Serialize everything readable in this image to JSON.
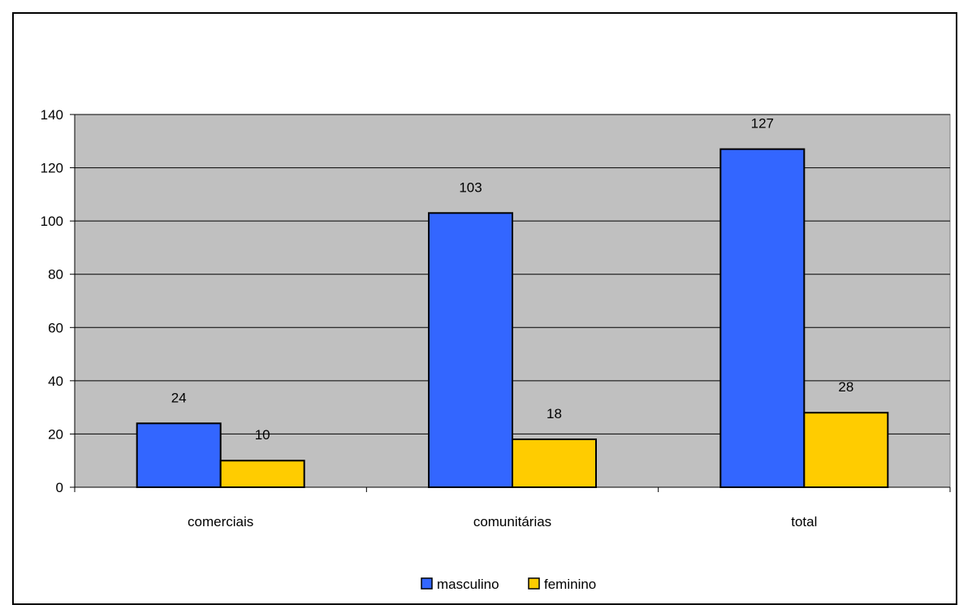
{
  "chart_data": {
    "type": "bar",
    "categories": [
      "comerciais",
      "comunitárias",
      "total"
    ],
    "series": [
      {
        "name": "masculino",
        "values": [
          24,
          103,
          127
        ],
        "color": "#3366FF"
      },
      {
        "name": "feminino",
        "values": [
          10,
          18,
          28
        ],
        "color": "#FFCC00"
      }
    ],
    "ylim": [
      0,
      140
    ],
    "yticks": [
      0,
      20,
      40,
      60,
      80,
      100,
      120,
      140
    ],
    "grid": true,
    "plot_background": "#C0C0C0",
    "legend_position": "bottom",
    "data_labels": true
  }
}
